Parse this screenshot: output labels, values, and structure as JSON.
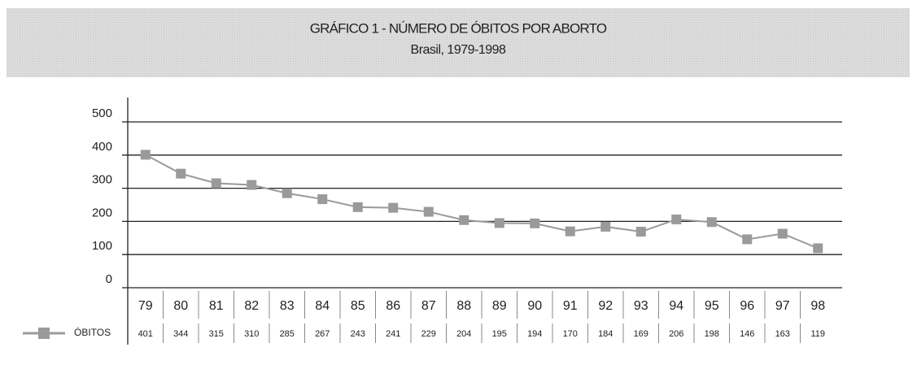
{
  "chart_data": {
    "type": "line",
    "title": "GRÁFICO 1 - NÚMERO DE ÓBITOS POR ABORTO",
    "subtitle": "Brasil, 1979-1998",
    "categories": [
      "79",
      "80",
      "81",
      "82",
      "83",
      "84",
      "85",
      "86",
      "87",
      "88",
      "89",
      "90",
      "91",
      "92",
      "93",
      "94",
      "95",
      "96",
      "97",
      "98"
    ],
    "series": [
      {
        "name": "ÓBITOS",
        "color": "#9a9a9a",
        "values": [
          401,
          344,
          315,
          310,
          285,
          267,
          243,
          241,
          229,
          204,
          195,
          194,
          170,
          184,
          169,
          206,
          198,
          146,
          163,
          119
        ]
      }
    ],
    "ylim": [
      0,
      500
    ],
    "yticks": [
      0,
      100,
      200,
      300,
      400,
      500
    ],
    "grid": true
  }
}
